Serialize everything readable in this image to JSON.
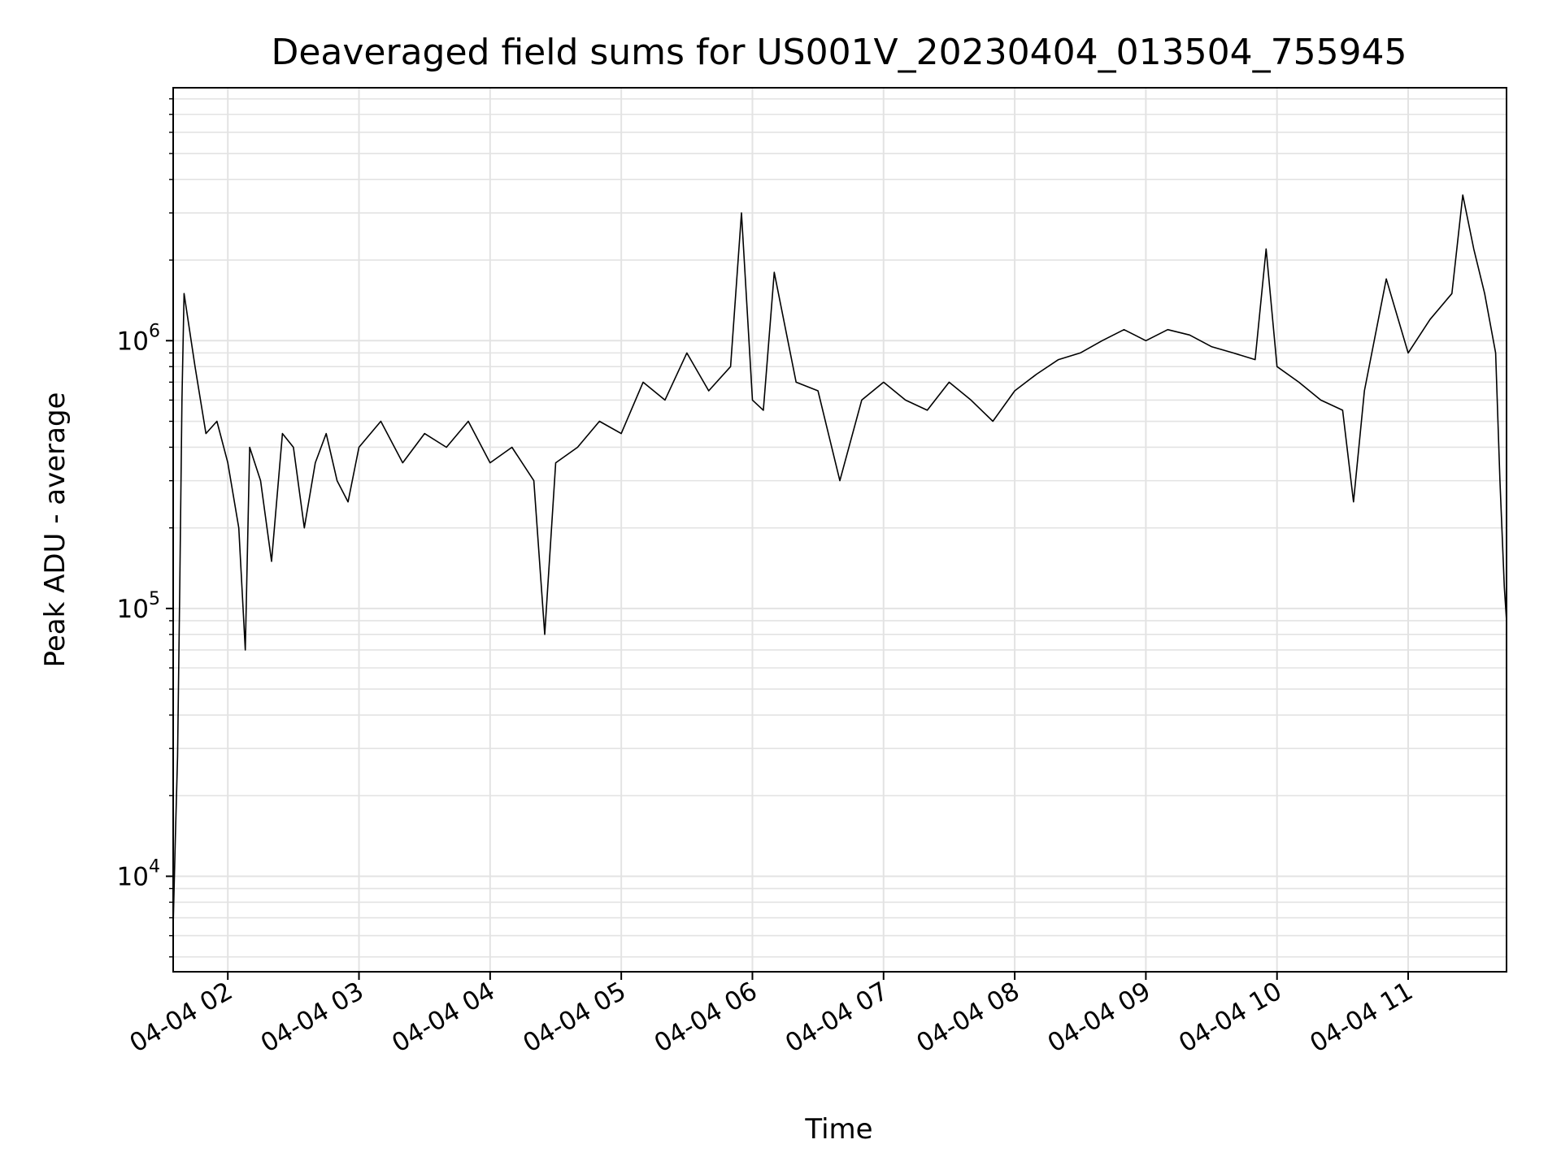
{
  "chart_data": {
    "type": "line",
    "title": "Deaveraged field sums for US001V_20230404_013504_755945",
    "xlabel": "Time",
    "ylabel": "Peak ADU - average",
    "xscale": "time",
    "yscale": "log",
    "xlim": [
      "2023-04-04 01:35",
      "2023-04-04 11:45"
    ],
    "ylim": [
      4400,
      8800000
    ],
    "grid": true,
    "line_color": "#000000",
    "grid_color": "#e3e3e3",
    "x_ticks": [
      {
        "value": "2023-04-04 02:00",
        "label": "04-04 02"
      },
      {
        "value": "2023-04-04 03:00",
        "label": "04-04 03"
      },
      {
        "value": "2023-04-04 04:00",
        "label": "04-04 04"
      },
      {
        "value": "2023-04-04 05:00",
        "label": "04-04 05"
      },
      {
        "value": "2023-04-04 06:00",
        "label": "04-04 06"
      },
      {
        "value": "2023-04-04 07:00",
        "label": "04-04 07"
      },
      {
        "value": "2023-04-04 08:00",
        "label": "04-04 08"
      },
      {
        "value": "2023-04-04 09:00",
        "label": "04-04 09"
      },
      {
        "value": "2023-04-04 10:00",
        "label": "04-04 10"
      },
      {
        "value": "2023-04-04 11:00",
        "label": "04-04 11"
      }
    ],
    "y_ticks": [
      {
        "value": 10000,
        "base": "10",
        "exp": "4"
      },
      {
        "value": 100000,
        "base": "10",
        "exp": "5"
      },
      {
        "value": 1000000,
        "base": "10",
        "exp": "6"
      }
    ],
    "series": [
      {
        "x": [
          "2023-04-04 01:35",
          "2023-04-04 01:36",
          "2023-04-04 01:37",
          "2023-04-04 01:38",
          "2023-04-04 01:39",
          "2023-04-04 01:40",
          "2023-04-04 01:45",
          "2023-04-04 01:50",
          "2023-04-04 01:55",
          "2023-04-04 02:00",
          "2023-04-04 02:05",
          "2023-04-04 02:08",
          "2023-04-04 02:10",
          "2023-04-04 02:15",
          "2023-04-04 02:20",
          "2023-04-04 02:25",
          "2023-04-04 02:30",
          "2023-04-04 02:35",
          "2023-04-04 02:40",
          "2023-04-04 02:45",
          "2023-04-04 02:50",
          "2023-04-04 02:55",
          "2023-04-04 03:00",
          "2023-04-04 03:10",
          "2023-04-04 03:20",
          "2023-04-04 03:30",
          "2023-04-04 03:40",
          "2023-04-04 03:50",
          "2023-04-04 04:00",
          "2023-04-04 04:10",
          "2023-04-04 04:20",
          "2023-04-04 04:25",
          "2023-04-04 04:30",
          "2023-04-04 04:40",
          "2023-04-04 04:50",
          "2023-04-04 05:00",
          "2023-04-04 05:10",
          "2023-04-04 05:20",
          "2023-04-04 05:30",
          "2023-04-04 05:40",
          "2023-04-04 05:50",
          "2023-04-04 05:55",
          "2023-04-04 06:00",
          "2023-04-04 06:05",
          "2023-04-04 06:10",
          "2023-04-04 06:20",
          "2023-04-04 06:30",
          "2023-04-04 06:40",
          "2023-04-04 06:50",
          "2023-04-04 07:00",
          "2023-04-04 07:10",
          "2023-04-04 07:20",
          "2023-04-04 07:30",
          "2023-04-04 07:40",
          "2023-04-04 07:50",
          "2023-04-04 08:00",
          "2023-04-04 08:10",
          "2023-04-04 08:20",
          "2023-04-04 08:30",
          "2023-04-04 08:40",
          "2023-04-04 08:50",
          "2023-04-04 09:00",
          "2023-04-04 09:10",
          "2023-04-04 09:20",
          "2023-04-04 09:30",
          "2023-04-04 09:40",
          "2023-04-04 09:50",
          "2023-04-04 09:55",
          "2023-04-04 10:00",
          "2023-04-04 10:10",
          "2023-04-04 10:20",
          "2023-04-04 10:30",
          "2023-04-04 10:35",
          "2023-04-04 10:40",
          "2023-04-04 10:50",
          "2023-04-04 11:00",
          "2023-04-04 11:10",
          "2023-04-04 11:20",
          "2023-04-04 11:25",
          "2023-04-04 11:30",
          "2023-04-04 11:35",
          "2023-04-04 11:40",
          "2023-04-04 11:42",
          "2023-04-04 11:44",
          "2023-04-04 11:45"
        ],
        "values": [
          6500,
          14000,
          28000,
          120000,
          600000,
          1500000,
          800000,
          450000,
          500000,
          350000,
          200000,
          70000,
          400000,
          300000,
          150000,
          450000,
          400000,
          200000,
          350000,
          450000,
          300000,
          250000,
          400000,
          500000,
          350000,
          450000,
          400000,
          500000,
          350000,
          400000,
          300000,
          80000,
          350000,
          400000,
          500000,
          450000,
          700000,
          600000,
          900000,
          650000,
          800000,
          3000000,
          600000,
          550000,
          1800000,
          700000,
          650000,
          300000,
          600000,
          700000,
          600000,
          550000,
          700000,
          600000,
          500000,
          650000,
          750000,
          850000,
          900000,
          1000000,
          1100000,
          1000000,
          1100000,
          1050000,
          950000,
          900000,
          850000,
          2200000,
          800000,
          700000,
          600000,
          550000,
          250000,
          650000,
          1700000,
          900000,
          1200000,
          1500000,
          3500000,
          2200000,
          1500000,
          900000,
          300000,
          120000,
          90000
        ]
      }
    ]
  }
}
